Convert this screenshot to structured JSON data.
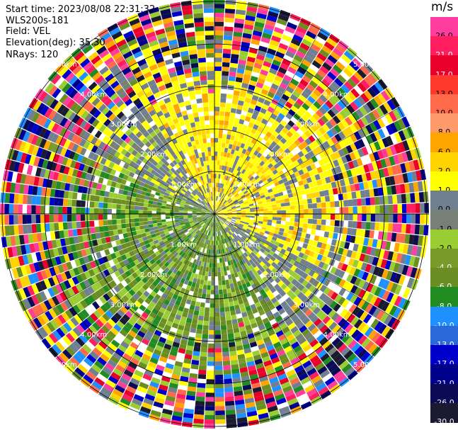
{
  "header": {
    "start_time": "Start time: 2023/08/08 22:31:32",
    "instrument": "WLS200s-181",
    "field": "Field: VEL",
    "elevation": "Elevation(deg): 35.30",
    "nrays": "NRays: 120"
  },
  "range_rings": [
    {
      "label": "1.00km",
      "km": 1
    },
    {
      "label": "2.00km",
      "km": 2
    },
    {
      "label": "3.00km",
      "km": 3
    },
    {
      "label": "4.00km",
      "km": 4
    },
    {
      "label": "5.00km",
      "km": 5
    }
  ],
  "colorbar": {
    "unit": "m/s",
    "ticks": [
      "26.0",
      "21.0",
      "17.0",
      "13.0",
      "10.0",
      "8.0",
      "6.0",
      "2.0",
      "1.0",
      "0.0",
      "-1.0",
      "-2.0",
      "-4.0",
      "-6.0",
      "-8.0",
      "-10.0",
      "-13.0",
      "-17.0",
      "-21.0",
      "-26.0",
      "-30.0"
    ],
    "colors": [
      "#ff3d9e",
      "#ff1f61",
      "#e8002a",
      "#ff3a2a",
      "#ff6a4a",
      "#ff9a6a",
      "#ffa500",
      "#ffd400",
      "#ffff00",
      "#708090",
      "#778074",
      "#9acd32",
      "#7a9a2a",
      "#6b8e23",
      "#228b22",
      "#1e90ff",
      "#2a6ad8",
      "#0000cd",
      "#00008b",
      "#0a0a55",
      "#1a1a30"
    ]
  }
}
